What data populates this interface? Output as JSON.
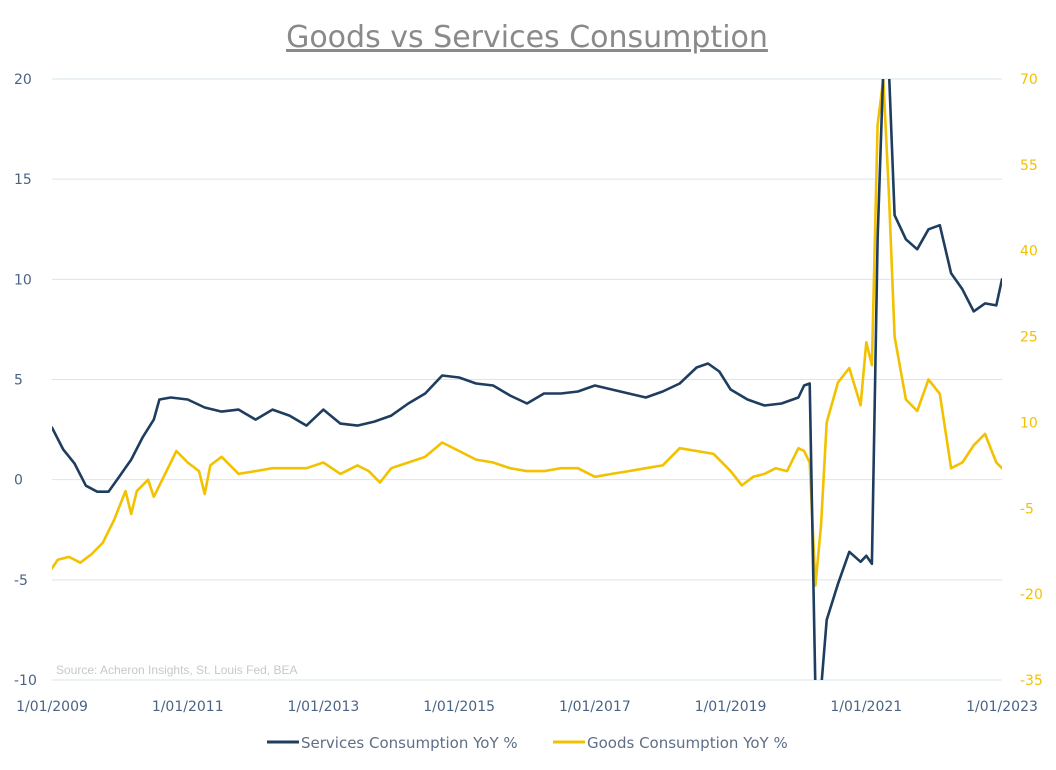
{
  "chart_data": {
    "type": "line",
    "title": "Goods vs Services Consumption",
    "source": "Source: Acheron Insights, St. Louis Fed, BEA",
    "x_ticks": [
      "1/01/2009",
      "1/01/2011",
      "1/01/2013",
      "1/01/2015",
      "1/01/2017",
      "1/01/2019",
      "1/01/2021",
      "1/01/2023"
    ],
    "xlim": [
      "2009-01",
      "2023-01"
    ],
    "y_left": {
      "ticks": [
        20,
        15,
        10,
        5,
        0,
        -5,
        -10
      ],
      "tick_labels": [
        "20",
        "15",
        "10",
        "5",
        "0",
        "-5",
        "-10"
      ],
      "lim": [
        -10,
        20
      ],
      "color": "#4b6384"
    },
    "y_right": {
      "ticks": [
        70,
        55,
        40,
        25,
        10,
        -5,
        -20,
        -35
      ],
      "tick_labels": [
        "70",
        "55",
        "40",
        "25",
        "10",
        "-5",
        "-20",
        "-35"
      ],
      "lim": [
        -35,
        70
      ],
      "color": "#f2c100"
    },
    "grid": true,
    "legend_position": "bottom",
    "series": [
      {
        "name": "Services Consumption YoY %",
        "axis": "left",
        "color": "#1f3d5e",
        "points": [
          [
            "2009-01",
            2.6
          ],
          [
            "2009-03",
            1.5
          ],
          [
            "2009-05",
            0.8
          ],
          [
            "2009-07",
            -0.3
          ],
          [
            "2009-09",
            -0.6
          ],
          [
            "2009-11",
            -0.6
          ],
          [
            "2010-01",
            0.2
          ],
          [
            "2010-03",
            1.0
          ],
          [
            "2010-05",
            2.1
          ],
          [
            "2010-07",
            3.0
          ],
          [
            "2010-08",
            4.0
          ],
          [
            "2010-10",
            4.1
          ],
          [
            "2011-01",
            4.0
          ],
          [
            "2011-04",
            3.6
          ],
          [
            "2011-07",
            3.4
          ],
          [
            "2011-10",
            3.5
          ],
          [
            "2012-01",
            3.0
          ],
          [
            "2012-04",
            3.5
          ],
          [
            "2012-07",
            3.2
          ],
          [
            "2012-10",
            2.7
          ],
          [
            "2013-01",
            3.5
          ],
          [
            "2013-04",
            2.8
          ],
          [
            "2013-07",
            2.7
          ],
          [
            "2013-10",
            2.9
          ],
          [
            "2014-01",
            3.2
          ],
          [
            "2014-04",
            3.8
          ],
          [
            "2014-07",
            4.3
          ],
          [
            "2014-10",
            5.2
          ],
          [
            "2015-01",
            5.1
          ],
          [
            "2015-04",
            4.8
          ],
          [
            "2015-07",
            4.7
          ],
          [
            "2015-10",
            4.2
          ],
          [
            "2016-01",
            3.8
          ],
          [
            "2016-04",
            4.3
          ],
          [
            "2016-07",
            4.3
          ],
          [
            "2016-10",
            4.4
          ],
          [
            "2017-01",
            4.7
          ],
          [
            "2017-04",
            4.5
          ],
          [
            "2017-07",
            4.3
          ],
          [
            "2017-10",
            4.1
          ],
          [
            "2018-01",
            4.4
          ],
          [
            "2018-04",
            4.8
          ],
          [
            "2018-07",
            5.6
          ],
          [
            "2018-09",
            5.8
          ],
          [
            "2018-11",
            5.4
          ],
          [
            "2019-01",
            4.5
          ],
          [
            "2019-04",
            4.0
          ],
          [
            "2019-07",
            3.7
          ],
          [
            "2019-10",
            3.8
          ],
          [
            "2020-01",
            4.1
          ],
          [
            "2020-02",
            4.7
          ],
          [
            "2020-03",
            4.8
          ],
          [
            "2020-04",
            -10.5
          ],
          [
            "2020-05",
            -10.5
          ],
          [
            "2020-06",
            -7.0
          ],
          [
            "2020-08",
            -5.2
          ],
          [
            "2020-10",
            -3.6
          ],
          [
            "2020-12",
            -4.1
          ],
          [
            "2021-01",
            -3.8
          ],
          [
            "2021-02",
            -4.2
          ],
          [
            "2021-03",
            12.0
          ],
          [
            "2021-04",
            20.5
          ],
          [
            "2021-05",
            20.5
          ],
          [
            "2021-06",
            13.2
          ],
          [
            "2021-08",
            12.0
          ],
          [
            "2021-10",
            11.5
          ],
          [
            "2021-12",
            12.5
          ],
          [
            "2022-02",
            12.7
          ],
          [
            "2022-04",
            10.3
          ],
          [
            "2022-06",
            9.5
          ],
          [
            "2022-08",
            8.4
          ],
          [
            "2022-10",
            8.8
          ],
          [
            "2022-12",
            8.7
          ],
          [
            "2023-01",
            10.0
          ]
        ]
      },
      {
        "name": "Goods Consumption YoY %",
        "axis": "right",
        "color": "#f2c100",
        "points": [
          [
            "2009-01",
            -15.5
          ],
          [
            "2009-02",
            -14.0
          ],
          [
            "2009-04",
            -13.5
          ],
          [
            "2009-06",
            -14.5
          ],
          [
            "2009-08",
            -13.0
          ],
          [
            "2009-10",
            -11.0
          ],
          [
            "2009-12",
            -7.0
          ],
          [
            "2010-02",
            -2.0
          ],
          [
            "2010-03",
            -6.0
          ],
          [
            "2010-04",
            -2.0
          ],
          [
            "2010-06",
            0.0
          ],
          [
            "2010-07",
            -3.0
          ],
          [
            "2010-09",
            1.0
          ],
          [
            "2010-11",
            5.0
          ],
          [
            "2011-01",
            3.0
          ],
          [
            "2011-03",
            1.5
          ],
          [
            "2011-04",
            -2.5
          ],
          [
            "2011-05",
            2.5
          ],
          [
            "2011-07",
            4.0
          ],
          [
            "2011-10",
            1.0
          ],
          [
            "2012-01",
            1.5
          ],
          [
            "2012-04",
            2.0
          ],
          [
            "2012-07",
            2.0
          ],
          [
            "2012-10",
            2.0
          ],
          [
            "2013-01",
            3.0
          ],
          [
            "2013-04",
            1.0
          ],
          [
            "2013-07",
            2.5
          ],
          [
            "2013-09",
            1.5
          ],
          [
            "2013-11",
            -0.5
          ],
          [
            "2014-01",
            2.0
          ],
          [
            "2014-04",
            3.0
          ],
          [
            "2014-07",
            4.0
          ],
          [
            "2014-10",
            6.5
          ],
          [
            "2015-01",
            5.0
          ],
          [
            "2015-04",
            3.5
          ],
          [
            "2015-07",
            3.0
          ],
          [
            "2015-10",
            2.0
          ],
          [
            "2016-01",
            1.5
          ],
          [
            "2016-04",
            1.5
          ],
          [
            "2016-07",
            2.0
          ],
          [
            "2016-10",
            2.0
          ],
          [
            "2017-01",
            0.5
          ],
          [
            "2017-04",
            1.0
          ],
          [
            "2017-07",
            1.5
          ],
          [
            "2017-10",
            2.0
          ],
          [
            "2018-01",
            2.5
          ],
          [
            "2018-04",
            5.5
          ],
          [
            "2018-07",
            5.0
          ],
          [
            "2018-10",
            4.5
          ],
          [
            "2019-01",
            1.5
          ],
          [
            "2019-03",
            -1.0
          ],
          [
            "2019-05",
            0.5
          ],
          [
            "2019-07",
            1.0
          ],
          [
            "2019-09",
            2.0
          ],
          [
            "2019-11",
            1.5
          ],
          [
            "2020-01",
            5.5
          ],
          [
            "2020-02",
            5.0
          ],
          [
            "2020-03",
            3.0
          ],
          [
            "2020-04",
            -18.5
          ],
          [
            "2020-05",
            -8.0
          ],
          [
            "2020-06",
            10.0
          ],
          [
            "2020-08",
            17.0
          ],
          [
            "2020-10",
            19.5
          ],
          [
            "2020-12",
            13.0
          ],
          [
            "2021-01",
            24.0
          ],
          [
            "2021-02",
            20.0
          ],
          [
            "2021-03",
            62.0
          ],
          [
            "2021-04",
            70.0
          ],
          [
            "2021-05",
            50.0
          ],
          [
            "2021-06",
            25.0
          ],
          [
            "2021-08",
            14.0
          ],
          [
            "2021-10",
            12.0
          ],
          [
            "2021-12",
            17.5
          ],
          [
            "2022-02",
            15.0
          ],
          [
            "2022-04",
            2.0
          ],
          [
            "2022-06",
            3.0
          ],
          [
            "2022-08",
            6.0
          ],
          [
            "2022-10",
            8.0
          ],
          [
            "2022-12",
            3.0
          ],
          [
            "2023-01",
            2.0
          ]
        ]
      }
    ]
  }
}
